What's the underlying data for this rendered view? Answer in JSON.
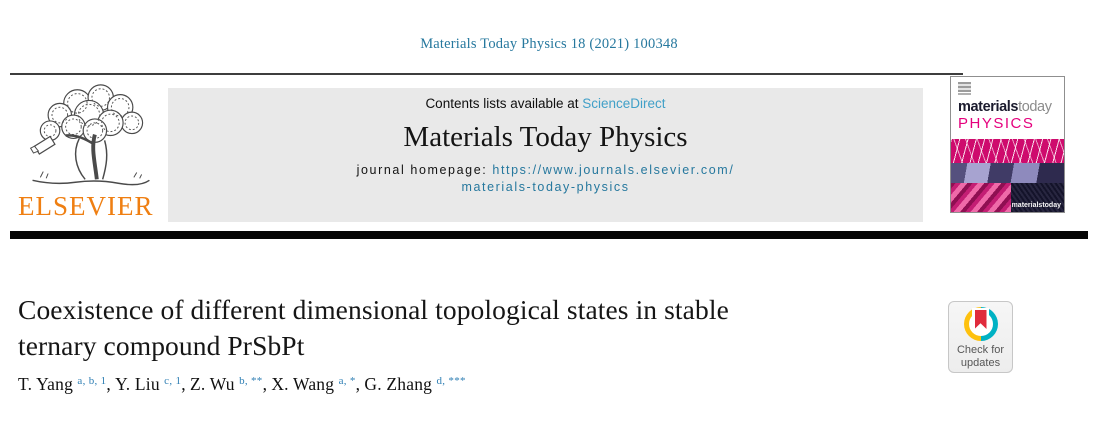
{
  "colors": {
    "teal_link": "#26789e",
    "light_blue_link": "#41a0c8",
    "superscript_blue": "#2f7fb4",
    "elsevier_orange": "#ef7f12",
    "cover_magenta": "#e5007d",
    "banner_bg": "#e9e9e9",
    "crossmark_teal": "#00b2c4",
    "crossmark_yellow": "#fec10e",
    "crossmark_red": "#e02b3c"
  },
  "masthead": {
    "citation": "Materials Today Physics 18 (2021) 100348",
    "contents_prefix": "Contents lists available at ",
    "sciencedirect_link": "ScienceDirect",
    "journal_title": "Materials Today Physics",
    "homepage_label": "journal homepage: ",
    "homepage_url_line1": "https://www.journals.elsevier.com/",
    "homepage_url_line2": "materials-today-physics",
    "elsevier_wordmark": "ELSEVIER"
  },
  "cover": {
    "brand_bold": "materials",
    "brand_light": "today",
    "subtitle": "PHYSICS",
    "footer_brand": "materialstoday"
  },
  "article": {
    "title_line1": "Coexistence of different dimensional topological states in stable",
    "title_line2": "ternary compound PrSbPt",
    "author_separator": ", ",
    "authors": [
      {
        "name": "T. Yang",
        "affiliations": "a, b, 1"
      },
      {
        "name": "Y. Liu",
        "affiliations": "c, 1"
      },
      {
        "name": "Z. Wu",
        "affiliations": "b, **"
      },
      {
        "name": "X. Wang",
        "affiliations": "a, *"
      },
      {
        "name": "G. Zhang",
        "affiliations": "d, ***"
      }
    ]
  },
  "crossmark_badge": {
    "line1": "Check for",
    "line2": "updates"
  }
}
